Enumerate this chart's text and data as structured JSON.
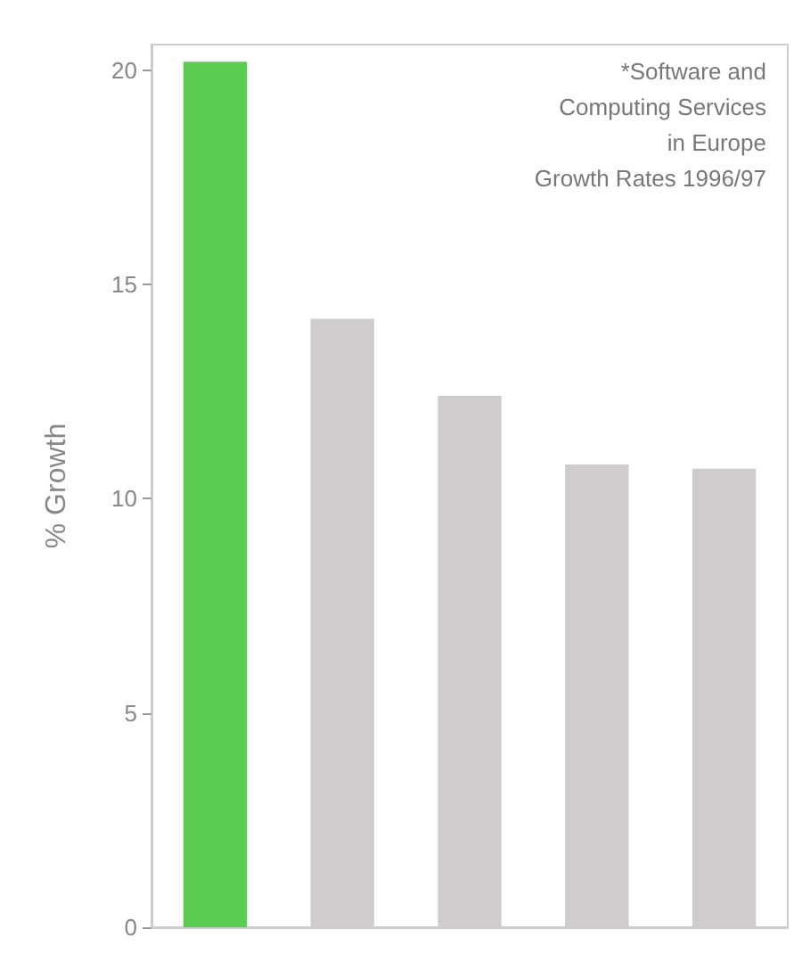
{
  "chart_data": {
    "type": "bar",
    "ylabel": "% Growth",
    "annotations": [
      "*Software and\nComputing Services\nin Europe\nGrowth Rates 1996/97"
    ],
    "categories": [
      null,
      null,
      null,
      null,
      null
    ],
    "values": [
      20.2,
      14.2,
      12.4,
      10.8,
      10.7
    ],
    "colors": [
      "#5ccc50",
      "#d0cccc",
      "#d0cccc",
      "#d0cccc",
      "#d0cccc"
    ],
    "ylim": [
      0,
      20.6
    ],
    "yticks": [
      0,
      5,
      10,
      15,
      20
    ],
    "grid": false
  }
}
